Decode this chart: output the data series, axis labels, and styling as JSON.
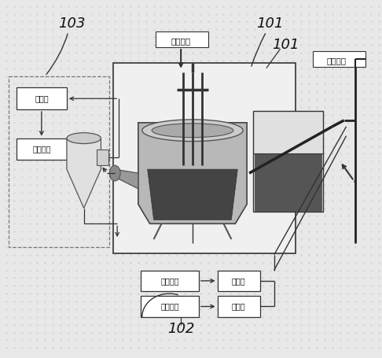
{
  "bg_color": "#e8e8e8",
  "furnace_image_placeholder": true,
  "label_101": "101",
  "label_102": "102",
  "label_103": "103",
  "text_supply": "供电系统",
  "text_oxygen": "工业纯氧",
  "text_exchanger": "换热器",
  "text_coal_user": "煮气用户",
  "text_calcium": "钙基粉末",
  "text_carbon": "碳基粉末",
  "text_dryer": "干燥器"
}
